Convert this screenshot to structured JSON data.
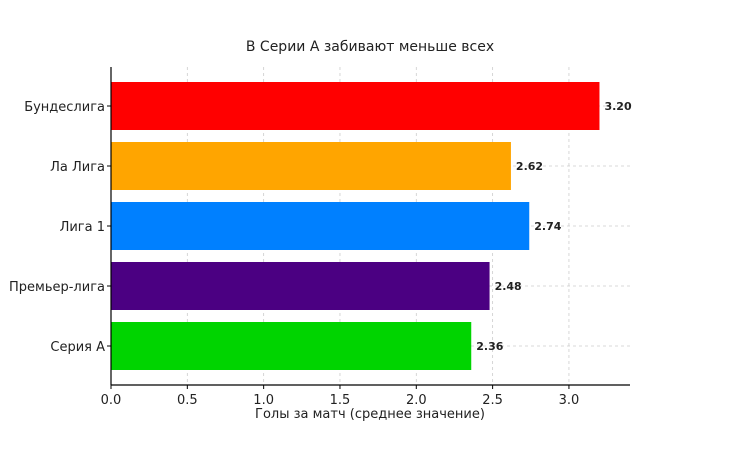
{
  "chart_data": {
    "type": "bar",
    "orientation": "horizontal",
    "title": "В Серии А забивают меньше всех",
    "xlabel": "Голы за матч (среднее значение)",
    "ylabel": "",
    "categories": [
      "Бундеслига",
      "Ла Лига",
      "Лига 1",
      "Премьер-лига",
      "Серия А"
    ],
    "values": [
      3.2,
      2.62,
      2.74,
      2.48,
      2.36
    ],
    "value_labels": [
      "3.20",
      "2.62",
      "2.74",
      "2.48",
      "2.36"
    ],
    "colors": [
      "#ff0000",
      "#ffa500",
      "#0080ff",
      "#4b0082",
      "#00d400"
    ],
    "xlim": [
      0,
      3.4
    ],
    "xticks": [
      0.0,
      0.5,
      1.0,
      1.5,
      2.0,
      2.5,
      3.0
    ],
    "xtick_labels": [
      "0.0",
      "0.5",
      "1.0",
      "1.5",
      "2.0",
      "2.5",
      "3.0"
    ],
    "grid": true,
    "legend": "none"
  }
}
